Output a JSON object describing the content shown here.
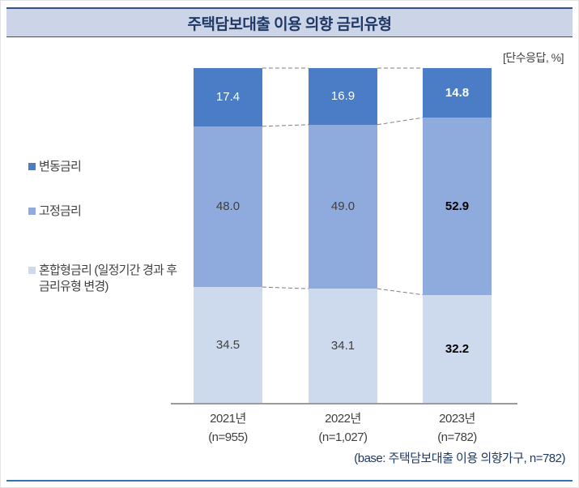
{
  "header": {
    "title": "주택담보대출 이용 의향 금리유형"
  },
  "unit_label": "[단수응답, %]",
  "base_note": "(base: 주택담보대출 이용 의향가구, n=782)",
  "colors": {
    "variable_rate": "#4a7dc6",
    "fixed_rate": "#8faadc",
    "hybrid_rate": "#cdd9ec",
    "header_bg": "#ccd4e8",
    "header_line": "#31538f",
    "title_text": "#1f3864",
    "bottom_rule": "#2e74b5"
  },
  "legend": [
    {
      "label": "변동금리",
      "sublabel": "",
      "color": "#4a7dc6"
    },
    {
      "label": "고정금리",
      "sublabel": "",
      "color": "#8faadc"
    },
    {
      "label": "혼합형금리",
      "sublabel": "(일정기간 경과 후 금리유형 변경)",
      "color": "#cdd9ec"
    }
  ],
  "chart_data": {
    "type": "bar",
    "stacked": true,
    "percent_stacked": true,
    "unit": "%",
    "title": "주택담보대출 이용 의향 금리유형",
    "categories": [
      "2021년",
      "2022년",
      "2023년"
    ],
    "category_sublabels": [
      "(n=955)",
      "(n=1,027)",
      "(n=782)"
    ],
    "series": [
      {
        "name": "변동금리",
        "color": "#4a7dc6",
        "values": [
          17.4,
          16.9,
          14.8
        ]
      },
      {
        "name": "고정금리",
        "color": "#8faadc",
        "values": [
          48.0,
          49.0,
          52.9
        ]
      },
      {
        "name": "혼합형금리(일정기간 경과 후 금리유형 변경)",
        "color": "#cdd9ec",
        "values": [
          34.5,
          34.1,
          32.2
        ]
      }
    ],
    "ylim": [
      0,
      100
    ],
    "grid": false,
    "legend_position": "left",
    "emphasized_category": "2023년",
    "connector_lines": "dashed lines join segment boundaries between adjacent bars"
  }
}
